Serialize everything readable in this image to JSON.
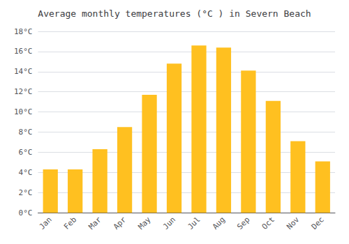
{
  "chart_data": {
    "type": "bar",
    "title": "Average monthly temperatures (°C ) in Severn Beach",
    "categories": [
      "Jan",
      "Feb",
      "Mar",
      "Apr",
      "May",
      "Jun",
      "Jul",
      "Aug",
      "Sep",
      "Oct",
      "Nov",
      "Dec"
    ],
    "values": [
      4.3,
      4.3,
      6.3,
      8.5,
      11.7,
      14.8,
      16.6,
      16.4,
      14.1,
      11.1,
      7.1,
      5.1
    ],
    "color": "#FFC020",
    "ylim": [
      0,
      18
    ],
    "yticks": [
      {
        "value": 0,
        "label": "0°C"
      },
      {
        "value": 2,
        "label": "2°C"
      },
      {
        "value": 4,
        "label": "4°C"
      },
      {
        "value": 6,
        "label": "6°C"
      },
      {
        "value": 8,
        "label": "8°C"
      },
      {
        "value": 10,
        "label": "10°C"
      },
      {
        "value": 12,
        "label": "12°C"
      },
      {
        "value": 14,
        "label": "14°C"
      },
      {
        "value": 16,
        "label": "16°C"
      },
      {
        "value": 18,
        "label": "18°C"
      }
    ],
    "grid": true
  }
}
